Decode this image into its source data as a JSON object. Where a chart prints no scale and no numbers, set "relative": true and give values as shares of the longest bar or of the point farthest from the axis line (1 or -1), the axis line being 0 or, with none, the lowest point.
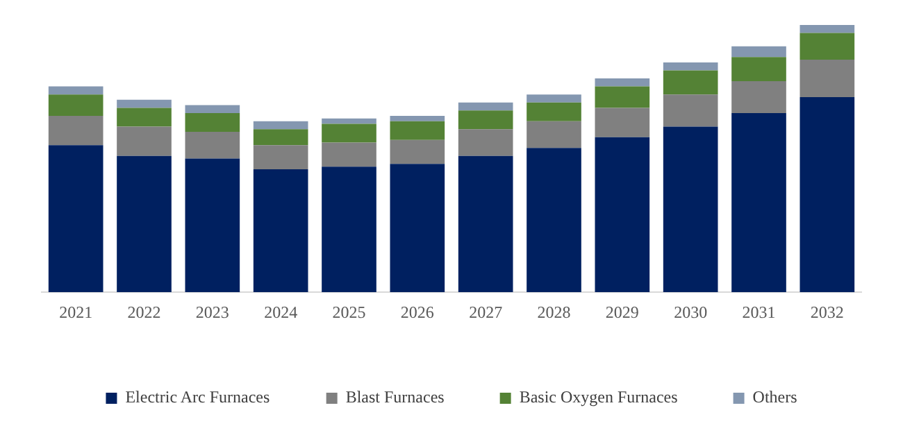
{
  "chart_data": {
    "type": "bar",
    "stacked": true,
    "relative": true,
    "legend": "bottom",
    "grid": false,
    "categories": [
      "2021",
      "2022",
      "2023",
      "2024",
      "2025",
      "2026",
      "2027",
      "2028",
      "2029",
      "2030",
      "2031",
      "2032"
    ],
    "series": [
      {
        "name": "Electric Arc Furnaces",
        "color": "#002060",
        "values": [
          0.55,
          0.51,
          0.5,
          0.46,
          0.47,
          0.48,
          0.51,
          0.54,
          0.58,
          0.62,
          0.67,
          0.73
        ]
      },
      {
        "name": "Blast Furnaces",
        "color": "#808080",
        "values": [
          0.11,
          0.11,
          0.1,
          0.09,
          0.09,
          0.09,
          0.1,
          0.1,
          0.11,
          0.12,
          0.12,
          0.14
        ]
      },
      {
        "name": "Basic Oxygen Furnaces",
        "color": "#548235",
        "values": [
          0.08,
          0.07,
          0.07,
          0.06,
          0.07,
          0.07,
          0.07,
          0.07,
          0.08,
          0.09,
          0.09,
          0.1
        ]
      },
      {
        "name": "Others",
        "color": "#8497b0",
        "values": [
          0.03,
          0.03,
          0.03,
          0.03,
          0.02,
          0.02,
          0.03,
          0.03,
          0.03,
          0.03,
          0.04,
          0.03
        ]
      }
    ]
  }
}
